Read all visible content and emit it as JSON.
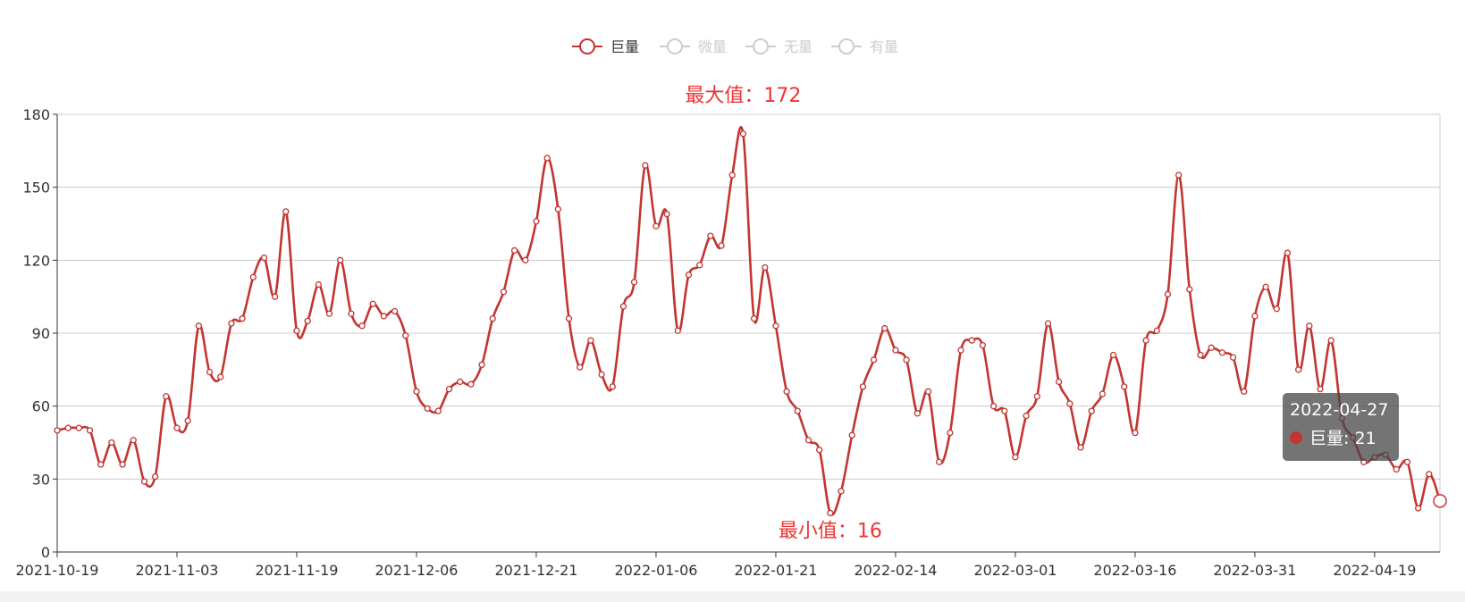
{
  "legend": [
    {
      "name": "巨量",
      "active": true,
      "color": "#c23531"
    },
    {
      "name": "微量",
      "active": false,
      "color": "#cccccc"
    },
    {
      "name": "无量",
      "active": false,
      "color": "#cccccc"
    },
    {
      "name": "有量",
      "active": false,
      "color": "#cccccc"
    }
  ],
  "chart_data": {
    "type": "line",
    "smooth": true,
    "ylim": [
      0,
      180
    ],
    "yticks": [
      0,
      30,
      60,
      90,
      120,
      150,
      180
    ],
    "xtick_labels": [
      "2021-10-19",
      "2021-11-03",
      "2021-11-19",
      "2021-12-06",
      "2021-12-21",
      "2022-01-06",
      "2022-01-21",
      "2022-02-14",
      "2022-03-01",
      "2022-03-16",
      "2022-03-31",
      "2022-04-19"
    ],
    "grid": true,
    "legend_position": "top-center",
    "series": [
      {
        "name": "巨量",
        "color": "#c23531",
        "values": [
          50,
          51,
          51,
          50,
          36,
          45,
          36,
          46,
          29,
          31,
          64,
          51,
          54,
          93,
          74,
          72,
          94,
          96,
          113,
          121,
          105,
          140,
          91,
          95,
          110,
          98,
          120,
          98,
          93,
          102,
          97,
          99,
          89,
          66,
          59,
          58,
          67,
          70,
          69,
          77,
          96,
          107,
          124,
          120,
          136,
          162,
          141,
          96,
          76,
          87,
          73,
          68,
          101,
          111,
          159,
          134,
          139,
          91,
          114,
          118,
          130,
          126,
          155,
          172,
          96,
          117,
          93,
          66,
          58,
          46,
          42,
          16,
          25,
          48,
          68,
          79,
          92,
          83,
          79,
          57,
          66,
          37,
          49,
          83,
          87,
          85,
          60,
          58,
          39,
          56,
          64,
          94,
          70,
          61,
          43,
          58,
          65,
          81,
          68,
          49,
          87,
          91,
          106,
          155,
          108,
          81,
          84,
          82,
          80,
          66,
          97,
          109,
          100,
          123,
          75,
          93,
          67,
          87,
          55,
          47,
          37,
          39,
          40,
          34,
          37,
          18,
          32,
          21
        ]
      }
    ],
    "markpoints": [
      {
        "type": "max",
        "label": "最大值：172",
        "value": 172,
        "index": 63
      },
      {
        "type": "min",
        "label": "最小值：16",
        "value": 16,
        "index": 71
      }
    ]
  },
  "tooltip": {
    "date": "2022-04-27",
    "series": "巨量",
    "value_text": "巨量: 21"
  }
}
